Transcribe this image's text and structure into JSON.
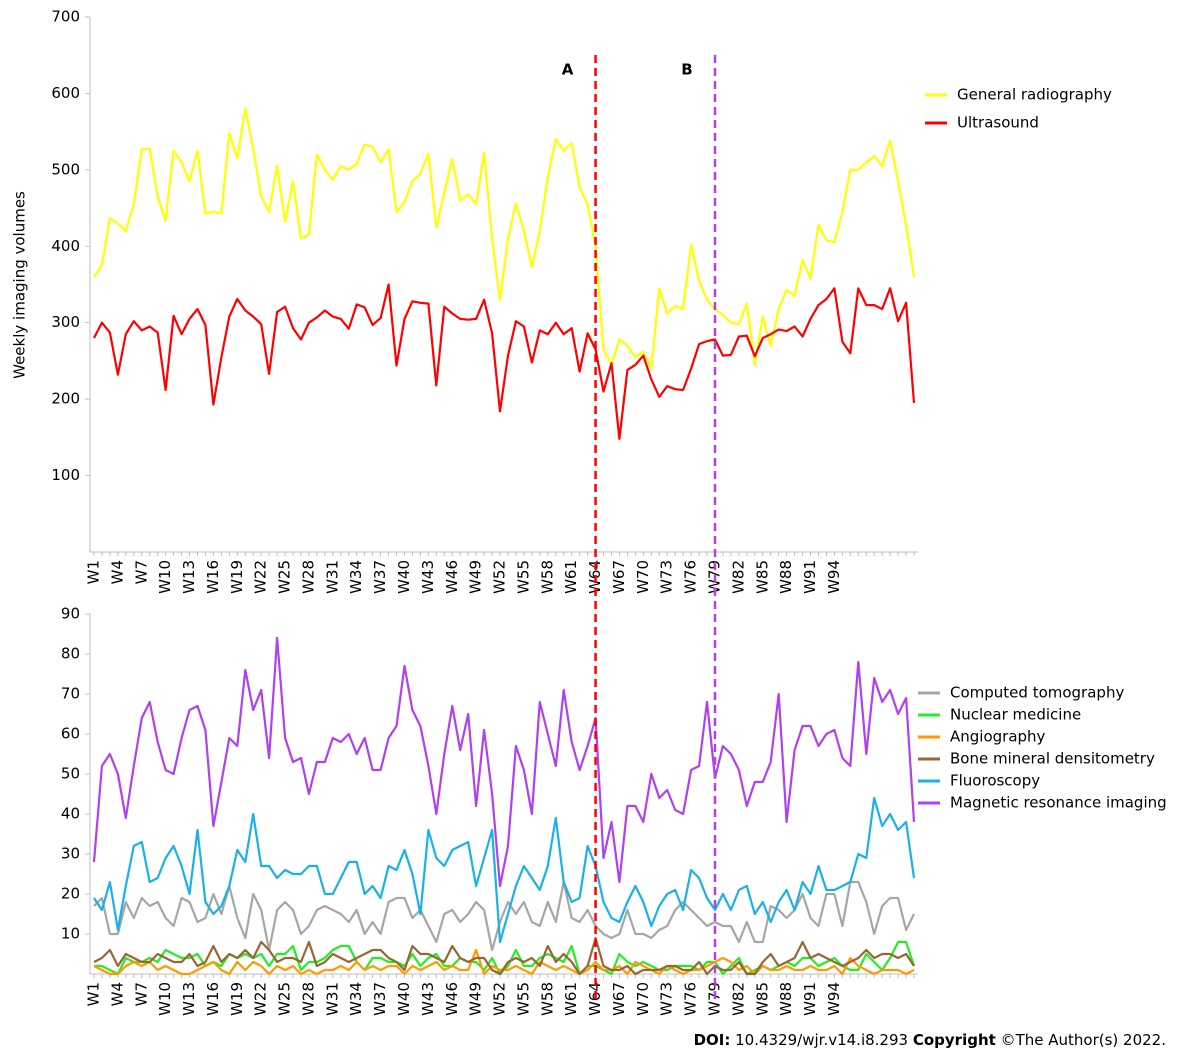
{
  "chart_data": [
    {
      "type": "line",
      "y_label": "Weekly imaging volumes",
      "categories": [
        "W1",
        null,
        null,
        "W4",
        null,
        null,
        "W7",
        null,
        null,
        "W10",
        null,
        null,
        "W13",
        null,
        null,
        "W16",
        null,
        null,
        "W19",
        null,
        null,
        "W22",
        null,
        null,
        "W25",
        null,
        null,
        "W28",
        null,
        null,
        "W31",
        null,
        null,
        "W34",
        null,
        null,
        "W37",
        null,
        null,
        "W40",
        null,
        null,
        "W43",
        null,
        null,
        "W46",
        null,
        null,
        "W49",
        null,
        null,
        "W52",
        null,
        null,
        "W55",
        null,
        null,
        "W58",
        null,
        null,
        "W61",
        null,
        null,
        "W64",
        null,
        null,
        "W67",
        null,
        null,
        "W70",
        null,
        null,
        "W73",
        null,
        null,
        "W76",
        null,
        null,
        "W79",
        null,
        null,
        "W82",
        null,
        null,
        "W85",
        null,
        null,
        "W88",
        null,
        null,
        "W91",
        null,
        null,
        "W94",
        null,
        null,
        null,
        null,
        null,
        null,
        null,
        null,
        null,
        null
      ],
      "ylim": [
        0,
        700
      ],
      "yticks": [
        100,
        200,
        300,
        400,
        500,
        600,
        700
      ],
      "annotations": [
        {
          "text": "A",
          "x": "W64",
          "color": "#ff0000"
        },
        {
          "text": "B",
          "x": "W79",
          "color": "#b040f0"
        }
      ],
      "series": [
        {
          "name": "General radiography",
          "color": "#ffff00",
          "values": [
            360,
            375,
            437,
            430,
            420,
            455,
            527,
            528,
            465,
            433,
            525,
            510,
            485,
            525,
            443,
            445,
            443,
            548,
            515,
            580,
            528,
            465,
            445,
            505,
            432,
            485,
            410,
            415,
            520,
            500,
            487,
            505,
            500,
            508,
            533,
            530,
            510,
            527,
            445,
            458,
            485,
            495,
            521,
            425,
            470,
            514,
            460,
            468,
            455,
            522,
            410,
            330,
            410,
            456,
            420,
            373,
            420,
            490,
            540,
            525,
            535,
            478,
            455,
            400,
            265,
            245,
            278,
            270,
            255,
            262,
            240,
            345,
            312,
            322,
            318,
            402,
            355,
            330,
            318,
            310,
            300,
            298,
            325,
            245,
            308,
            270,
            318,
            343,
            335,
            382,
            358,
            428,
            408,
            405,
            445,
            500,
            500,
            510,
            518,
            505,
            538,
            485,
            428,
            360
          ]
        },
        {
          "name": "Ultrasound",
          "color": "#ff0000",
          "values": [
            280,
            300,
            287,
            232,
            285,
            302,
            290,
            295,
            287,
            212,
            309,
            285,
            305,
            318,
            297,
            193,
            255,
            308,
            331,
            316,
            308,
            298,
            233,
            314,
            321,
            293,
            278,
            300,
            307,
            316,
            308,
            305,
            292,
            324,
            320,
            297,
            306,
            350,
            244,
            305,
            328,
            326,
            325,
            218,
            321,
            312,
            305,
            304,
            305,
            330,
            286,
            184,
            257,
            302,
            295,
            248,
            290,
            285,
            300,
            285,
            293,
            236,
            286,
            265,
            210,
            247,
            148,
            238,
            245,
            257,
            226,
            203,
            217,
            213,
            212,
            240,
            272,
            276,
            278,
            257,
            258,
            282,
            283,
            256,
            280,
            285,
            291,
            289,
            295,
            282,
            305,
            323,
            331,
            345,
            275,
            260,
            345,
            323,
            323,
            318,
            345,
            302,
            326,
            195
          ]
        }
      ]
    },
    {
      "type": "line",
      "categories": [
        "W1",
        null,
        null,
        "W4",
        null,
        null,
        "W7",
        null,
        null,
        "W10",
        null,
        null,
        "W13",
        null,
        null,
        "W16",
        null,
        null,
        "W19",
        null,
        null,
        "W22",
        null,
        null,
        "W25",
        null,
        null,
        "W28",
        null,
        null,
        "W31",
        null,
        null,
        "W34",
        null,
        null,
        "W37",
        null,
        null,
        "W40",
        null,
        null,
        "W43",
        null,
        null,
        "W46",
        null,
        null,
        "W49",
        null,
        null,
        "W52",
        null,
        null,
        "W55",
        null,
        null,
        "W58",
        null,
        null,
        "W61",
        null,
        null,
        "W64",
        null,
        null,
        "W67",
        null,
        null,
        "W70",
        null,
        null,
        "W73",
        null,
        null,
        "W76",
        null,
        null,
        "W79",
        null,
        null,
        "W82",
        null,
        null,
        "W85",
        null,
        null,
        "W88",
        null,
        null,
        "W91",
        null,
        null,
        "W94",
        null,
        null,
        null,
        null,
        null,
        null,
        null,
        null,
        null,
        null
      ],
      "ylim": [
        0,
        90
      ],
      "yticks": [
        10,
        20,
        30,
        40,
        50,
        60,
        70,
        80,
        90
      ],
      "series": [
        {
          "name": "Computed tomography",
          "color": "#a6a6a6",
          "values": [
            17,
            19,
            10,
            10,
            18,
            14,
            19,
            17,
            18,
            14,
            12,
            19,
            18,
            13,
            14,
            20,
            15,
            22,
            14,
            9,
            20,
            16,
            6,
            16,
            18,
            16,
            10,
            12,
            16,
            17,
            16,
            15,
            13,
            16,
            10,
            13,
            10,
            18,
            19,
            19,
            14,
            16,
            12,
            8,
            15,
            16,
            13,
            15,
            18,
            16,
            6,
            13,
            18,
            15,
            18,
            13,
            12,
            18,
            13,
            23,
            14,
            13,
            16,
            12,
            10,
            9,
            10,
            16,
            10,
            10,
            9,
            11,
            12,
            16,
            18,
            16,
            14,
            12,
            13,
            12,
            12,
            8,
            13,
            8,
            8,
            17,
            16,
            14,
            16,
            20,
            14,
            12,
            20,
            20,
            12,
            23,
            23,
            18,
            10,
            17,
            19,
            19,
            11,
            15
          ]
        },
        {
          "name": "Nuclear medicine",
          "color": "#22ee22",
          "values": [
            2,
            2,
            1,
            0,
            4,
            3,
            3,
            4,
            3,
            6,
            5,
            4,
            4,
            5,
            2,
            3,
            2,
            5,
            4,
            5,
            4,
            5,
            2,
            5,
            5,
            7,
            1,
            3,
            3,
            4,
            6,
            7,
            7,
            3,
            1,
            4,
            4,
            3,
            3,
            2,
            5,
            2,
            4,
            5,
            2,
            2,
            4,
            3,
            3,
            1,
            4,
            0,
            2,
            6,
            2,
            2,
            4,
            5,
            4,
            3,
            7,
            0,
            2,
            2,
            1,
            0,
            5,
            3,
            2,
            3,
            2,
            1,
            1,
            2,
            2,
            2,
            1,
            3,
            3,
            0,
            2,
            4,
            0,
            1,
            2,
            1,
            2,
            3,
            2,
            4,
            4,
            2,
            3,
            4,
            2,
            1,
            1,
            5,
            3,
            1,
            4,
            8,
            8,
            2
          ]
        },
        {
          "name": "Angiography",
          "color": "#ff9900",
          "values": [
            2,
            1,
            0,
            0,
            2,
            3,
            2,
            3,
            1,
            2,
            1,
            0,
            0,
            1,
            2,
            3,
            1,
            0,
            3,
            1,
            3,
            2,
            0,
            2,
            1,
            2,
            0,
            1,
            0,
            1,
            1,
            2,
            1,
            3,
            1,
            2,
            1,
            2,
            2,
            0,
            2,
            1,
            2,
            3,
            1,
            2,
            1,
            1,
            6,
            0,
            2,
            1,
            1,
            2,
            1,
            0,
            3,
            2,
            1,
            2,
            1,
            0,
            1,
            3,
            1,
            1,
            2,
            0,
            3,
            2,
            1,
            0,
            2,
            1,
            0,
            1,
            1,
            2,
            3,
            4,
            3,
            1,
            2,
            0,
            2,
            1,
            1,
            2,
            1,
            1,
            2,
            1,
            1,
            2,
            0,
            4,
            2,
            1,
            0,
            1,
            1,
            1,
            0,
            1
          ]
        },
        {
          "name": "Bone mineral densitometry",
          "color": "#996633",
          "values": [
            3,
            4,
            6,
            2,
            5,
            4,
            3,
            3,
            5,
            4,
            3,
            3,
            5,
            2,
            3,
            7,
            3,
            5,
            4,
            6,
            4,
            8,
            6,
            3,
            4,
            4,
            3,
            8,
            2,
            3,
            5,
            4,
            3,
            4,
            5,
            6,
            6,
            4,
            3,
            1,
            7,
            5,
            5,
            4,
            3,
            7,
            4,
            3,
            4,
            4,
            1,
            0,
            3,
            4,
            3,
            4,
            2,
            7,
            3,
            5,
            3,
            0,
            2,
            9,
            2,
            1,
            1,
            2,
            0,
            1,
            1,
            1,
            2,
            2,
            1,
            1,
            3,
            0,
            2,
            1,
            1,
            3,
            0,
            0,
            3,
            5,
            2,
            3,
            4,
            8,
            4,
            5,
            4,
            3,
            2,
            3,
            4,
            6,
            4,
            5,
            5,
            4,
            5,
            2
          ]
        },
        {
          "name": "Fluoroscopy",
          "color": "#1ab0e8",
          "values": [
            19,
            16,
            23,
            11,
            22,
            32,
            33,
            23,
            24,
            29,
            32,
            27,
            20,
            36,
            18,
            15,
            17,
            22,
            31,
            28,
            40,
            27,
            27,
            24,
            26,
            25,
            25,
            27,
            27,
            20,
            20,
            24,
            28,
            28,
            20,
            22,
            19,
            27,
            26,
            31,
            25,
            15,
            36,
            29,
            27,
            31,
            32,
            33,
            22,
            29,
            36,
            8,
            15,
            22,
            27,
            24,
            21,
            27,
            39,
            23,
            18,
            19,
            32,
            27,
            18,
            14,
            13,
            18,
            22,
            18,
            12,
            17,
            20,
            21,
            16,
            26,
            24,
            19,
            16,
            20,
            16,
            21,
            22,
            15,
            18,
            13,
            18,
            21,
            16,
            23,
            20,
            27,
            21,
            21,
            22,
            23,
            30,
            29,
            44,
            37,
            40,
            36,
            38,
            24
          ]
        },
        {
          "name": "Magnetic resonance imaging",
          "color": "#b040f0",
          "values": [
            28,
            52,
            55,
            50,
            39,
            52,
            64,
            68,
            58,
            51,
            50,
            59,
            66,
            67,
            61,
            37,
            48,
            59,
            57,
            76,
            66,
            71,
            54,
            84,
            59,
            53,
            54,
            45,
            53,
            53,
            59,
            58,
            60,
            55,
            59,
            51,
            51,
            59,
            62,
            77,
            66,
            62,
            52,
            40,
            55,
            67,
            56,
            65,
            42,
            61,
            45,
            22,
            32,
            57,
            51,
            40,
            68,
            60,
            52,
            71,
            58,
            51,
            57,
            64,
            29,
            38,
            23,
            42,
            42,
            38,
            50,
            44,
            46,
            41,
            40,
            51,
            52,
            68,
            49,
            57,
            55,
            51,
            42,
            48,
            48,
            53,
            70,
            38,
            56,
            62,
            62,
            57,
            60,
            61,
            54,
            52,
            78,
            55,
            74,
            68,
            71,
            65,
            69,
            38
          ]
        }
      ]
    }
  ],
  "footer": {
    "doi_label": "DOI:",
    "doi": "10.4329/wjr.v14.i8.293",
    "copyright_label": "Copyright",
    "copyright": "©The Author(s) 2022."
  }
}
